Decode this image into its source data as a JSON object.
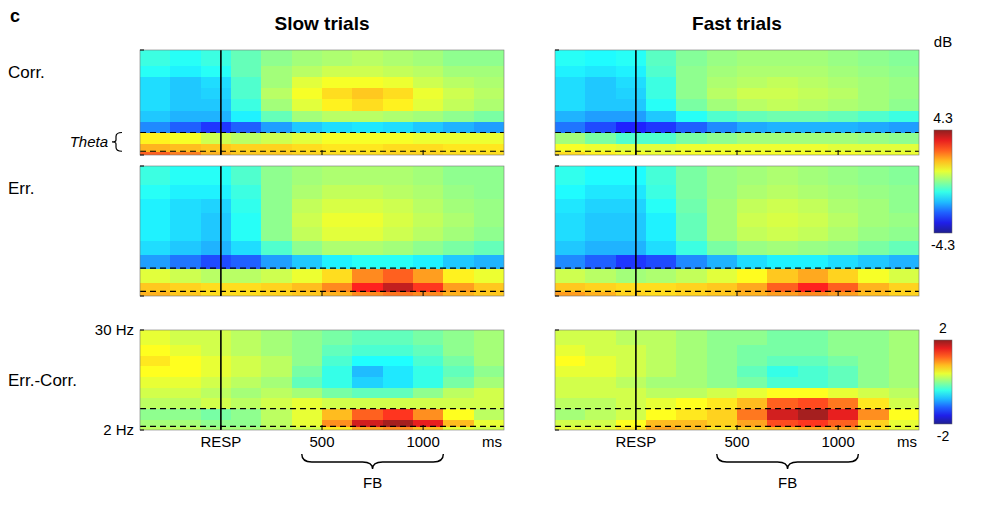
{
  "panel_label": "c",
  "column_titles": [
    "Slow trials",
    "Fast trials"
  ],
  "row_labels": [
    "Corr.",
    "Err.",
    "Err.-Corr."
  ],
  "color_unit": "dB",
  "theta_band": {
    "label": "Theta",
    "range": [
      3,
      8
    ]
  },
  "feedback": {
    "label": "FB",
    "range": [
      400,
      1100
    ]
  },
  "resp_line_x": 0,
  "chart_data": [
    {
      "type": "heatmap",
      "x_bins": [
        -400,
        -250,
        -100,
        50,
        200,
        350,
        500,
        650,
        800,
        950,
        1100,
        1250,
        1400
      ],
      "y_bins": [
        2,
        3,
        5,
        8,
        11,
        14,
        17,
        20,
        23,
        26,
        30
      ],
      "xlim": [
        -400,
        1400
      ],
      "ylim": [
        2,
        30
      ],
      "xticks": [
        {
          "value": 0,
          "label": "RESP"
        },
        500,
        1000
      ],
      "yticks": [
        {
          "value": 30,
          "label": "30 Hz"
        },
        {
          "value": 2,
          "label": "2 Hz"
        }
      ],
      "tick_labels": false,
      "color_range": [
        -4.3,
        4.3
      ],
      "color_ticks": [
        4.3,
        -4.3
      ],
      "values": [
        [
          2.6,
          2.3,
          1.8,
          1.6,
          1.6,
          1.5,
          1.4,
          1.4,
          1.5,
          1.5,
          1.4,
          1.4
        ],
        [
          1.8,
          1.7,
          1.6,
          1.5,
          1.5,
          1.4,
          1.3,
          1.3,
          1.4,
          1.4,
          1.3,
          1.3
        ],
        [
          1.2,
          1.0,
          0.6,
          0.4,
          0.6,
          0.8,
          1.0,
          1.0,
          1.0,
          0.9,
          0.9,
          0.9
        ],
        [
          -2.2,
          -2.6,
          -3.0,
          -2.6,
          -2.0,
          -1.6,
          -1.4,
          -1.3,
          -1.4,
          -1.6,
          -1.8,
          -2.0
        ],
        [
          -1.6,
          -1.8,
          -1.8,
          -1.2,
          -0.4,
          0.2,
          0.4,
          0.4,
          0.3,
          0.2,
          0.0,
          -0.2
        ],
        [
          -1.4,
          -1.6,
          -1.6,
          -0.8,
          0.2,
          0.8,
          1.2,
          1.4,
          1.2,
          0.8,
          0.5,
          0.3
        ],
        [
          -1.4,
          -1.6,
          -1.5,
          -0.6,
          0.4,
          1.0,
          1.4,
          1.6,
          1.4,
          0.9,
          0.6,
          0.4
        ],
        [
          -1.4,
          -1.6,
          -1.4,
          -0.6,
          0.2,
          0.8,
          1.0,
          1.0,
          0.9,
          0.6,
          0.4,
          0.3
        ],
        [
          -1.0,
          -1.2,
          -1.0,
          -0.4,
          0.2,
          0.4,
          0.6,
          0.6,
          0.5,
          0.4,
          0.2,
          0.2
        ],
        [
          -0.8,
          -1.0,
          -0.8,
          -0.4,
          0.0,
          0.2,
          0.3,
          0.4,
          0.3,
          0.2,
          0.0,
          0.0
        ]
      ]
    },
    {
      "type": "heatmap",
      "x_bins": [
        -400,
        -250,
        -100,
        50,
        200,
        350,
        500,
        650,
        800,
        950,
        1100,
        1250,
        1400
      ],
      "y_bins": [
        2,
        3,
        5,
        8,
        11,
        14,
        17,
        20,
        23,
        26,
        30
      ],
      "xlim": [
        -400,
        1400
      ],
      "ylim": [
        2,
        30
      ],
      "xticks": [
        {
          "value": 0,
          "label": "RESP"
        },
        500,
        1000
      ],
      "yticks": [
        {
          "value": 30,
          "label": "30 Hz"
        },
        {
          "value": 2,
          "label": "2 Hz"
        }
      ],
      "tick_labels": false,
      "color_range": [
        -4.3,
        4.3
      ],
      "color_ticks": [
        4.3,
        -4.3
      ],
      "values": [
        [
          1.4,
          1.2,
          1.0,
          0.9,
          1.0,
          1.0,
          1.0,
          1.0,
          1.0,
          1.0,
          0.9,
          0.9
        ],
        [
          1.0,
          0.9,
          0.8,
          0.8,
          0.9,
          0.9,
          0.9,
          0.9,
          0.9,
          0.8,
          0.8,
          0.8
        ],
        [
          0.2,
          -0.2,
          -0.6,
          -0.6,
          -0.2,
          0.0,
          0.2,
          0.2,
          0.2,
          0.2,
          0.1,
          0.0
        ],
        [
          -2.4,
          -2.8,
          -3.2,
          -3.0,
          -2.6,
          -2.2,
          -1.9,
          -1.8,
          -1.8,
          -1.8,
          -1.9,
          -2.0
        ],
        [
          -1.8,
          -2.0,
          -2.0,
          -1.6,
          -1.0,
          -0.6,
          -0.4,
          -0.3,
          -0.3,
          -0.4,
          -0.6,
          -0.8
        ],
        [
          -1.4,
          -1.6,
          -1.6,
          -1.0,
          -0.2,
          0.2,
          0.4,
          0.5,
          0.4,
          0.3,
          0.2,
          0.0
        ],
        [
          -1.4,
          -1.6,
          -1.5,
          -0.8,
          0.0,
          0.4,
          0.6,
          0.6,
          0.5,
          0.4,
          0.2,
          0.1
        ],
        [
          -1.4,
          -1.6,
          -1.4,
          -0.8,
          0.0,
          0.3,
          0.4,
          0.5,
          0.4,
          0.3,
          0.2,
          0.1
        ],
        [
          -1.2,
          -1.3,
          -1.2,
          -0.6,
          0.0,
          0.2,
          0.3,
          0.3,
          0.3,
          0.2,
          0.1,
          0.0
        ],
        [
          -1.0,
          -1.1,
          -1.0,
          -0.5,
          -0.1,
          0.1,
          0.2,
          0.2,
          0.2,
          0.1,
          0.0,
          -0.1
        ]
      ]
    },
    {
      "type": "heatmap",
      "x_bins": [
        -400,
        -250,
        -100,
        50,
        200,
        350,
        500,
        650,
        800,
        950,
        1100,
        1250,
        1400
      ],
      "y_bins": [
        2,
        3,
        5,
        8,
        11,
        14,
        17,
        20,
        23,
        26,
        30
      ],
      "xlim": [
        -400,
        1400
      ],
      "ylim": [
        2,
        30
      ],
      "xticks": [
        {
          "value": 0,
          "label": "RESP"
        },
        500,
        1000
      ],
      "yticks": [
        {
          "value": 30,
          "label": "30 Hz"
        },
        {
          "value": 2,
          "label": "2 Hz"
        }
      ],
      "tick_labels": false,
      "color_range": [
        -4.3,
        4.3
      ],
      "color_ticks": [
        4.3,
        -4.3
      ],
      "values": [
        [
          1.8,
          1.6,
          1.4,
          1.4,
          1.5,
          1.6,
          1.8,
          2.2,
          2.4,
          2.2,
          1.8,
          1.6
        ],
        [
          1.6,
          1.5,
          1.4,
          1.4,
          1.5,
          1.7,
          2.2,
          3.2,
          3.8,
          3.0,
          2.0,
          1.6
        ],
        [
          0.8,
          0.6,
          0.4,
          0.4,
          0.6,
          0.9,
          1.4,
          2.2,
          2.6,
          2.0,
          1.2,
          0.9
        ],
        [
          -2.0,
          -2.4,
          -2.8,
          -2.6,
          -2.0,
          -1.6,
          -1.2,
          -1.0,
          -1.0,
          -1.2,
          -1.6,
          -1.8
        ],
        [
          -1.4,
          -1.6,
          -1.8,
          -1.4,
          -0.6,
          0.0,
          0.3,
          0.3,
          0.2,
          0.0,
          -0.2,
          -0.4
        ],
        [
          -1.2,
          -1.4,
          -1.6,
          -1.0,
          0.0,
          0.5,
          0.8,
          0.8,
          0.6,
          0.4,
          0.2,
          0.0
        ],
        [
          -1.2,
          -1.4,
          -1.6,
          -1.0,
          0.0,
          0.6,
          0.9,
          0.9,
          0.7,
          0.5,
          0.3,
          0.1
        ],
        [
          -1.2,
          -1.4,
          -1.5,
          -0.9,
          0.0,
          0.5,
          0.7,
          0.7,
          0.6,
          0.4,
          0.2,
          0.1
        ],
        [
          -1.0,
          -1.2,
          -1.2,
          -0.8,
          0.0,
          0.3,
          0.5,
          0.5,
          0.4,
          0.3,
          0.1,
          0.0
        ],
        [
          -0.8,
          -1.0,
          -1.0,
          -0.6,
          0.0,
          0.2,
          0.3,
          0.3,
          0.3,
          0.2,
          0.0,
          0.0
        ]
      ]
    },
    {
      "type": "heatmap",
      "x_bins": [
        -400,
        -250,
        -100,
        50,
        200,
        350,
        500,
        650,
        800,
        950,
        1100,
        1250,
        1400
      ],
      "y_bins": [
        2,
        3,
        5,
        8,
        11,
        14,
        17,
        20,
        23,
        26,
        30
      ],
      "xlim": [
        -400,
        1400
      ],
      "ylim": [
        2,
        30
      ],
      "xticks": [
        {
          "value": 0,
          "label": "RESP"
        },
        500,
        1000
      ],
      "yticks": [
        {
          "value": 30,
          "label": "30 Hz"
        },
        {
          "value": 2,
          "label": "2 Hz"
        }
      ],
      "tick_labels": false,
      "color_range": [
        -4.3,
        4.3
      ],
      "color_ticks": [
        4.3,
        -4.3
      ],
      "values": [
        [
          2.0,
          1.8,
          1.5,
          1.4,
          1.5,
          1.6,
          1.8,
          2.0,
          2.2,
          2.0,
          1.7,
          1.5
        ],
        [
          1.6,
          1.5,
          1.4,
          1.4,
          1.5,
          1.6,
          1.9,
          2.6,
          3.2,
          2.6,
          1.8,
          1.5
        ],
        [
          0.6,
          0.4,
          0.2,
          0.3,
          0.5,
          0.8,
          1.1,
          1.6,
          1.9,
          1.5,
          1.0,
          0.7
        ],
        [
          -2.2,
          -2.6,
          -3.0,
          -2.8,
          -2.2,
          -1.8,
          -1.4,
          -1.2,
          -1.2,
          -1.4,
          -1.6,
          -1.8
        ],
        [
          -1.6,
          -1.8,
          -1.8,
          -1.4,
          -0.8,
          -0.2,
          0.1,
          0.2,
          0.1,
          0.0,
          -0.2,
          -0.4
        ],
        [
          -1.4,
          -1.6,
          -1.6,
          -1.2,
          -0.4,
          0.2,
          0.5,
          0.6,
          0.5,
          0.3,
          0.1,
          0.0
        ],
        [
          -1.4,
          -1.6,
          -1.6,
          -1.2,
          -0.4,
          0.2,
          0.6,
          0.7,
          0.6,
          0.4,
          0.2,
          0.1
        ],
        [
          -1.3,
          -1.5,
          -1.5,
          -1.0,
          -0.3,
          0.2,
          0.5,
          0.6,
          0.5,
          0.3,
          0.2,
          0.0
        ],
        [
          -1.1,
          -1.3,
          -1.3,
          -0.8,
          -0.2,
          0.1,
          0.3,
          0.4,
          0.3,
          0.2,
          0.1,
          0.0
        ],
        [
          -0.9,
          -1.1,
          -1.1,
          -0.7,
          -0.2,
          0.1,
          0.2,
          0.3,
          0.2,
          0.1,
          0.0,
          -0.1
        ]
      ]
    },
    {
      "type": "heatmap",
      "x_bins": [
        -400,
        -250,
        -100,
        50,
        200,
        350,
        500,
        650,
        800,
        950,
        1100,
        1250,
        1400
      ],
      "y_bins": [
        2,
        3,
        5,
        8,
        11,
        14,
        17,
        20,
        23,
        26,
        30
      ],
      "xlim": [
        -400,
        1400
      ],
      "ylim": [
        2,
        30
      ],
      "xticks": [
        {
          "value": 0,
          "label": "RESP"
        },
        500,
        1000
      ],
      "yticks": [
        {
          "value": 30,
          "label": "30 Hz"
        },
        {
          "value": 2,
          "label": "2 Hz"
        }
      ],
      "x_label": "ms",
      "tick_labels": true,
      "color_range": [
        -2,
        2
      ],
      "color_ticks": [
        2,
        -2
      ],
      "values": [
        [
          0.2,
          0.2,
          0.1,
          0.1,
          0.2,
          0.3,
          0.6,
          0.9,
          1.0,
          0.8,
          0.4,
          0.3
        ],
        [
          0.1,
          0.1,
          0.0,
          0.0,
          0.2,
          0.4,
          1.0,
          1.7,
          1.9,
          1.6,
          0.8,
          0.4
        ],
        [
          0.0,
          0.0,
          -0.1,
          0.0,
          0.2,
          0.4,
          0.8,
          1.2,
          1.4,
          1.0,
          0.5,
          0.2
        ],
        [
          0.2,
          0.2,
          0.3,
          0.2,
          0.3,
          0.4,
          0.3,
          0.3,
          0.3,
          0.3,
          0.3,
          0.3
        ],
        [
          0.3,
          0.3,
          0.2,
          0.1,
          0.2,
          0.1,
          -0.1,
          -0.2,
          -0.2,
          0.0,
          0.2,
          0.3
        ],
        [
          0.4,
          0.4,
          0.3,
          0.2,
          0.1,
          -0.2,
          -0.4,
          -0.7,
          -0.6,
          -0.4,
          -0.1,
          0.1
        ],
        [
          0.5,
          0.5,
          0.4,
          0.3,
          0.2,
          -0.1,
          -0.4,
          -0.8,
          -0.6,
          -0.4,
          -0.2,
          0.0
        ],
        [
          0.6,
          0.5,
          0.4,
          0.3,
          0.2,
          0.0,
          -0.3,
          -0.5,
          -0.5,
          -0.3,
          -0.1,
          0.1
        ],
        [
          0.5,
          0.4,
          0.3,
          0.2,
          0.1,
          0.0,
          -0.2,
          -0.3,
          -0.3,
          -0.2,
          0.0,
          0.1
        ],
        [
          0.4,
          0.3,
          0.3,
          0.2,
          0.1,
          0.0,
          -0.1,
          -0.2,
          -0.2,
          -0.1,
          0.0,
          0.1
        ]
      ]
    },
    {
      "type": "heatmap",
      "x_bins": [
        -400,
        -250,
        -100,
        50,
        200,
        350,
        500,
        650,
        800,
        950,
        1100,
        1250,
        1400
      ],
      "y_bins": [
        2,
        3,
        5,
        8,
        11,
        14,
        17,
        20,
        23,
        26,
        30
      ],
      "xlim": [
        -400,
        1400
      ],
      "ylim": [
        2,
        30
      ],
      "xticks": [
        {
          "value": 0,
          "label": "RESP"
        },
        500,
        1000
      ],
      "yticks": [
        {
          "value": 30,
          "label": "30 Hz"
        },
        {
          "value": 2,
          "label": "2 Hz"
        }
      ],
      "x_label": "ms",
      "tick_labels": "x",
      "color_range": [
        -2,
        2
      ],
      "color_ticks": [
        2,
        -2
      ],
      "values": [
        [
          0.4,
          0.4,
          0.6,
          0.9,
          0.8,
          0.6,
          0.7,
          0.8,
          0.9,
          0.9,
          0.6,
          0.4
        ],
        [
          0.3,
          0.3,
          0.5,
          0.8,
          0.8,
          0.7,
          0.9,
          1.3,
          1.4,
          1.2,
          0.7,
          0.4
        ],
        [
          0.1,
          0.2,
          0.3,
          0.5,
          0.6,
          0.7,
          1.1,
          1.7,
          1.9,
          1.6,
          1.0,
          0.5
        ],
        [
          0.2,
          0.2,
          0.3,
          0.4,
          0.5,
          0.6,
          0.8,
          1.2,
          1.3,
          1.1,
          0.6,
          0.3
        ],
        [
          0.3,
          0.3,
          0.3,
          0.2,
          0.2,
          0.3,
          0.4,
          0.5,
          0.5,
          0.4,
          0.3,
          0.2
        ],
        [
          0.3,
          0.3,
          0.2,
          0.1,
          0.1,
          0.0,
          -0.1,
          -0.3,
          -0.3,
          -0.2,
          0.0,
          0.1
        ],
        [
          0.4,
          0.4,
          0.3,
          0.2,
          0.1,
          0.0,
          -0.2,
          -0.4,
          -0.3,
          -0.2,
          0.0,
          0.1
        ],
        [
          0.5,
          0.4,
          0.3,
          0.2,
          0.1,
          0.0,
          -0.1,
          -0.2,
          -0.2,
          -0.1,
          0.0,
          0.1
        ],
        [
          0.4,
          0.3,
          0.3,
          0.2,
          0.1,
          0.0,
          -0.1,
          -0.1,
          -0.1,
          0.0,
          0.0,
          0.1
        ],
        [
          0.3,
          0.3,
          0.2,
          0.2,
          0.1,
          0.0,
          0.0,
          -0.1,
          -0.1,
          0.0,
          0.0,
          0.1
        ]
      ]
    }
  ]
}
